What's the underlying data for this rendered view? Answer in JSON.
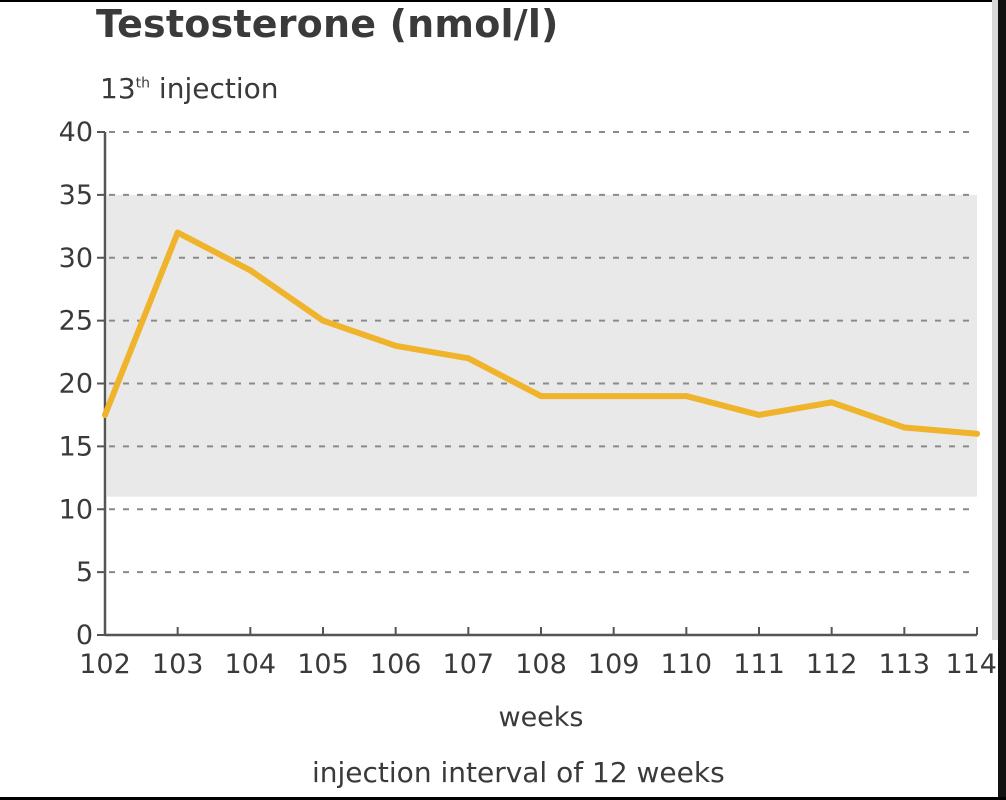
{
  "chart_data": {
    "type": "line",
    "title": "Testosterone (nmol/l)",
    "subtitle_main": "13",
    "subtitle_sup": "th",
    "subtitle_rest": " injection",
    "xlabel": "weeks",
    "caption": "injection interval of  12 weeks",
    "xlim": [
      102,
      114
    ],
    "ylim": [
      0,
      40
    ],
    "x_ticks": [
      102,
      103,
      104,
      105,
      106,
      107,
      108,
      109,
      110,
      111,
      112,
      113,
      114
    ],
    "y_ticks": [
      0,
      5,
      10,
      15,
      20,
      25,
      30,
      35,
      40
    ],
    "reference_band": [
      11,
      35
    ],
    "grid": "horizontal dashed",
    "series": [
      {
        "color": "#f0b42c",
        "x": [
          102,
          103,
          104,
          105,
          106,
          107,
          108,
          109,
          110,
          111,
          112,
          113,
          114
        ],
        "y": [
          17.5,
          32,
          29,
          25,
          23,
          22,
          19,
          19,
          19,
          17.5,
          18.5,
          16.5,
          16
        ]
      }
    ],
    "colors": {
      "band": "#e9e9e9",
      "grid": "#8a8a8a",
      "axis": "#555555"
    }
  }
}
